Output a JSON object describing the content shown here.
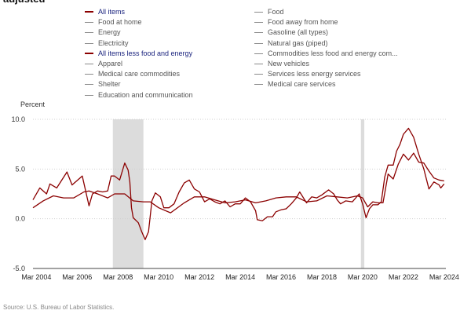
{
  "header": {
    "title_fragment": "adjusted"
  },
  "legend": {
    "items": [
      {
        "label": "All items",
        "active": true
      },
      {
        "label": "Food",
        "active": false
      },
      {
        "label": "Food at home",
        "active": false
      },
      {
        "label": "Food away from home",
        "active": false
      },
      {
        "label": "Energy",
        "active": false
      },
      {
        "label": "Gasoline (all types)",
        "active": false
      },
      {
        "label": "Electricity",
        "active": false
      },
      {
        "label": "Natural gas (piped)",
        "active": false
      },
      {
        "label": "All items less food and energy",
        "active": true
      },
      {
        "label": "Commodities less food and energy com...",
        "active": false
      },
      {
        "label": "Apparel",
        "active": false
      },
      {
        "label": "New vehicles",
        "active": false
      },
      {
        "label": "Medical care commodities",
        "active": false
      },
      {
        "label": "Services less energy services",
        "active": false
      },
      {
        "label": "Shelter",
        "active": false
      },
      {
        "label": "Medical care services",
        "active": false
      },
      {
        "label": "Education and communication",
        "active": false
      }
    ]
  },
  "source": "Source: U.S. Bureau of Labor Statistics.",
  "colors": {
    "series_line": "#8b0000",
    "recession_band": "#dcdcdc",
    "grid": "#cfcfcf",
    "legend_active_text": "#1a237e"
  },
  "chart_data": {
    "type": "line",
    "ylabel": "Percent",
    "ylim": [
      -5,
      10
    ],
    "yticks": [
      {
        "value": 10,
        "label": "10.0"
      },
      {
        "value": 5,
        "label": "5.0"
      },
      {
        "value": 0,
        "label": "0.0"
      },
      {
        "value": -5,
        "label": "-5.0"
      }
    ],
    "xlim": [
      "2004-01",
      "2024-04"
    ],
    "xticks": [
      {
        "value": "2004-03",
        "label": "Mar 2004"
      },
      {
        "value": "2006-03",
        "label": "Mar 2006"
      },
      {
        "value": "2008-03",
        "label": "Mar 2008"
      },
      {
        "value": "2010-03",
        "label": "Mar 2010"
      },
      {
        "value": "2012-03",
        "label": "Mar 2012"
      },
      {
        "value": "2014-03",
        "label": "Mar 2014"
      },
      {
        "value": "2016-03",
        "label": "Mar 2016"
      },
      {
        "value": "2018-03",
        "label": "Mar 2018"
      },
      {
        "value": "2020-03",
        "label": "Mar 2020"
      },
      {
        "value": "2022-03",
        "label": "Mar 2022"
      },
      {
        "value": "2024-03",
        "label": "Mar 2024"
      }
    ],
    "grid": "horizontal-dotted",
    "shaded_periods": [
      {
        "start": "2007-12",
        "end": "2009-06"
      },
      {
        "start": "2020-02",
        "end": "2020-04"
      }
    ],
    "series": [
      {
        "name": "All items",
        "points": [
          [
            "2004-01",
            1.9
          ],
          [
            "2004-05",
            3.1
          ],
          [
            "2004-09",
            2.5
          ],
          [
            "2004-11",
            3.5
          ],
          [
            "2005-03",
            3.1
          ],
          [
            "2005-09",
            4.7
          ],
          [
            "2005-12",
            3.4
          ],
          [
            "2006-06",
            4.3
          ],
          [
            "2006-10",
            1.3
          ],
          [
            "2006-12",
            2.5
          ],
          [
            "2007-03",
            2.8
          ],
          [
            "2007-06",
            2.7
          ],
          [
            "2007-09",
            2.8
          ],
          [
            "2007-11",
            4.3
          ],
          [
            "2008-01",
            4.3
          ],
          [
            "2008-04",
            3.9
          ],
          [
            "2008-07",
            5.6
          ],
          [
            "2008-09",
            4.9
          ],
          [
            "2008-10",
            3.7
          ],
          [
            "2008-11",
            1.1
          ],
          [
            "2008-12",
            0.1
          ],
          [
            "2009-03",
            -0.4
          ],
          [
            "2009-05",
            -1.3
          ],
          [
            "2009-07",
            -2.1
          ],
          [
            "2009-09",
            -1.3
          ],
          [
            "2009-11",
            1.8
          ],
          [
            "2010-01",
            2.6
          ],
          [
            "2010-04",
            2.2
          ],
          [
            "2010-06",
            1.1
          ],
          [
            "2010-09",
            1.1
          ],
          [
            "2010-12",
            1.5
          ],
          [
            "2011-03",
            2.7
          ],
          [
            "2011-06",
            3.6
          ],
          [
            "2011-09",
            3.9
          ],
          [
            "2011-12",
            3.0
          ],
          [
            "2012-03",
            2.7
          ],
          [
            "2012-06",
            1.7
          ],
          [
            "2012-09",
            2.0
          ],
          [
            "2012-12",
            1.7
          ],
          [
            "2013-03",
            1.5
          ],
          [
            "2013-06",
            1.8
          ],
          [
            "2013-09",
            1.2
          ],
          [
            "2013-12",
            1.5
          ],
          [
            "2014-03",
            1.5
          ],
          [
            "2014-06",
            2.1
          ],
          [
            "2014-09",
            1.7
          ],
          [
            "2014-12",
            0.8
          ],
          [
            "2015-01",
            -0.1
          ],
          [
            "2015-04",
            -0.2
          ],
          [
            "2015-07",
            0.2
          ],
          [
            "2015-10",
            0.2
          ],
          [
            "2015-12",
            0.7
          ],
          [
            "2016-03",
            0.9
          ],
          [
            "2016-06",
            1.0
          ],
          [
            "2016-09",
            1.5
          ],
          [
            "2016-12",
            2.1
          ],
          [
            "2017-02",
            2.7
          ],
          [
            "2017-06",
            1.6
          ],
          [
            "2017-09",
            2.2
          ],
          [
            "2017-12",
            2.1
          ],
          [
            "2018-03",
            2.4
          ],
          [
            "2018-07",
            2.9
          ],
          [
            "2018-10",
            2.5
          ],
          [
            "2018-12",
            1.9
          ],
          [
            "2019-02",
            1.5
          ],
          [
            "2019-05",
            1.8
          ],
          [
            "2019-09",
            1.7
          ],
          [
            "2019-12",
            2.3
          ],
          [
            "2020-01",
            2.5
          ],
          [
            "2020-03",
            1.5
          ],
          [
            "2020-05",
            0.1
          ],
          [
            "2020-07",
            1.0
          ],
          [
            "2020-09",
            1.4
          ],
          [
            "2020-12",
            1.4
          ],
          [
            "2021-02",
            1.7
          ],
          [
            "2021-04",
            4.2
          ],
          [
            "2021-06",
            5.4
          ],
          [
            "2021-09",
            5.4
          ],
          [
            "2021-11",
            6.8
          ],
          [
            "2022-01",
            7.5
          ],
          [
            "2022-03",
            8.5
          ],
          [
            "2022-06",
            9.1
          ],
          [
            "2022-09",
            8.2
          ],
          [
            "2022-12",
            6.5
          ],
          [
            "2023-03",
            5.0
          ],
          [
            "2023-06",
            3.0
          ],
          [
            "2023-09",
            3.7
          ],
          [
            "2023-12",
            3.4
          ],
          [
            "2024-01",
            3.1
          ],
          [
            "2024-03",
            3.5
          ]
        ]
      },
      {
        "name": "All items less food and energy",
        "points": [
          [
            "2004-01",
            1.1
          ],
          [
            "2004-07",
            1.8
          ],
          [
            "2005-01",
            2.3
          ],
          [
            "2005-07",
            2.1
          ],
          [
            "2006-01",
            2.1
          ],
          [
            "2006-07",
            2.7
          ],
          [
            "2006-10",
            2.8
          ],
          [
            "2007-03",
            2.5
          ],
          [
            "2007-09",
            2.1
          ],
          [
            "2008-01",
            2.5
          ],
          [
            "2008-07",
            2.5
          ],
          [
            "2008-12",
            1.8
          ],
          [
            "2009-06",
            1.7
          ],
          [
            "2009-10",
            1.7
          ],
          [
            "2010-03",
            1.1
          ],
          [
            "2010-10",
            0.6
          ],
          [
            "2011-06",
            1.6
          ],
          [
            "2011-12",
            2.2
          ],
          [
            "2012-06",
            2.2
          ],
          [
            "2012-12",
            1.9
          ],
          [
            "2013-06",
            1.6
          ],
          [
            "2013-12",
            1.7
          ],
          [
            "2014-06",
            1.9
          ],
          [
            "2014-12",
            1.6
          ],
          [
            "2015-06",
            1.8
          ],
          [
            "2015-12",
            2.1
          ],
          [
            "2016-06",
            2.2
          ],
          [
            "2016-12",
            2.2
          ],
          [
            "2017-06",
            1.7
          ],
          [
            "2017-12",
            1.8
          ],
          [
            "2018-06",
            2.3
          ],
          [
            "2018-12",
            2.2
          ],
          [
            "2019-06",
            2.1
          ],
          [
            "2019-12",
            2.3
          ],
          [
            "2020-03",
            2.1
          ],
          [
            "2020-06",
            1.2
          ],
          [
            "2020-09",
            1.7
          ],
          [
            "2020-12",
            1.6
          ],
          [
            "2021-03",
            1.6
          ],
          [
            "2021-06",
            4.5
          ],
          [
            "2021-09",
            4.0
          ],
          [
            "2021-12",
            5.5
          ],
          [
            "2022-03",
            6.5
          ],
          [
            "2022-06",
            5.9
          ],
          [
            "2022-09",
            6.6
          ],
          [
            "2022-12",
            5.7
          ],
          [
            "2023-03",
            5.6
          ],
          [
            "2023-06",
            4.8
          ],
          [
            "2023-09",
            4.1
          ],
          [
            "2023-12",
            3.9
          ],
          [
            "2024-03",
            3.8
          ]
        ]
      }
    ]
  }
}
